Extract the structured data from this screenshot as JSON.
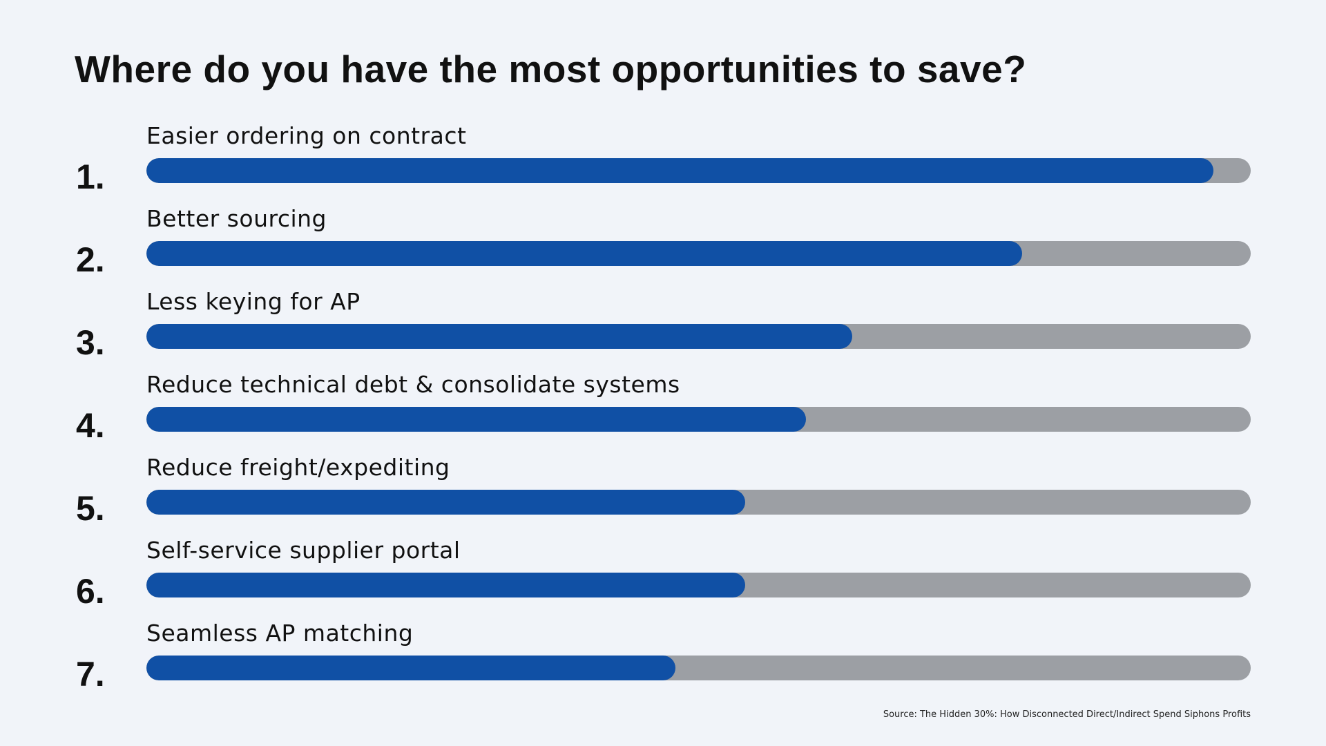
{
  "chart_data": {
    "type": "bar",
    "orientation": "horizontal",
    "title": "Where do you have the most opportunities to save?",
    "ranks": [
      "1.",
      "2.",
      "3.",
      "4.",
      "5.",
      "6.",
      "7."
    ],
    "categories": [
      "Easier ordering on contract",
      "Better sourcing",
      "Less keying for AP",
      "Reduce technical debt & consolidate systems",
      "Reduce freight/expediting",
      "Self-service supplier portal",
      "Seamless AP matching"
    ],
    "values": [
      96.6,
      79.3,
      63.9,
      59.7,
      54.2,
      54.2,
      47.9
    ],
    "value_unit": "percent of bar filled",
    "xlim": [
      0,
      100
    ],
    "grid": false,
    "colors": {
      "fill": "#1050a5",
      "track": "#9c9fa4",
      "background": "#f1f4f9"
    },
    "source": "Source: The Hidden 30%: How Disconnected Direct/Indirect Spend Siphons Profits"
  }
}
